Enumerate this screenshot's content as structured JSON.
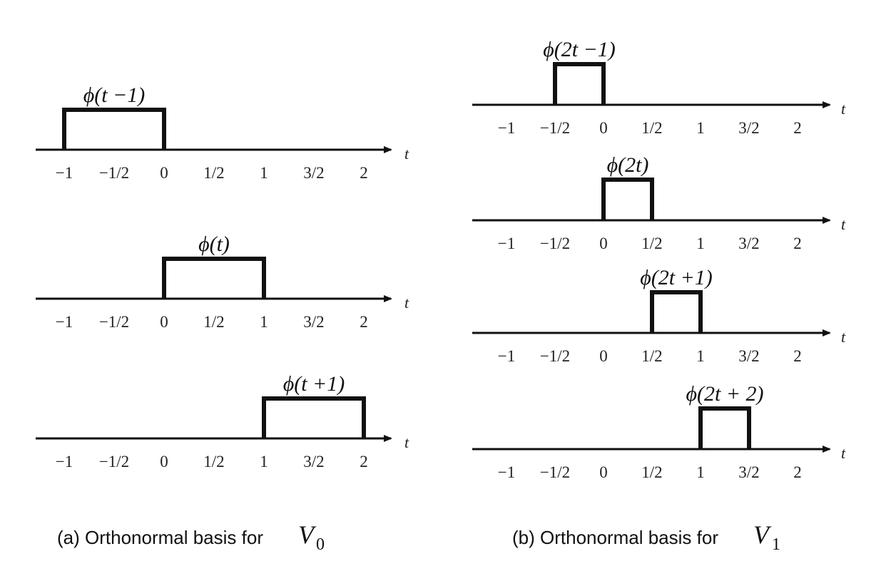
{
  "axis_variable": "t",
  "panels": [
    {
      "caption": {
        "text": "(a) Orthonormal basis for",
        "space": "V",
        "subscript": "0"
      },
      "plots": [
        {
          "label": "ϕ(t −1)",
          "support": [
            -1,
            0
          ]
        },
        {
          "label": "ϕ(t)",
          "support": [
            0,
            1
          ]
        },
        {
          "label": "ϕ(t +1)",
          "support": [
            1,
            2
          ]
        }
      ],
      "ticks": [
        "−1",
        "−1/2",
        "0",
        "1/2",
        "1",
        "3/2",
        "2"
      ],
      "tick_values": [
        -1,
        -0.5,
        0,
        0.5,
        1,
        1.5,
        2
      ]
    },
    {
      "caption": {
        "text": "(b) Orthonormal basis for",
        "space": "V",
        "subscript": "1"
      },
      "plots": [
        {
          "label": "ϕ(2t −1)",
          "support": [
            -0.5,
            0
          ]
        },
        {
          "label": "ϕ(2t)",
          "support": [
            0,
            0.5
          ]
        },
        {
          "label": "ϕ(2t +1)",
          "support": [
            0.5,
            1
          ]
        },
        {
          "label": "ϕ(2t + 2)",
          "support": [
            1,
            1.5
          ]
        }
      ],
      "ticks": [
        "−1",
        "−1/2",
        "0",
        "1/2",
        "1",
        "3/2",
        "2"
      ],
      "tick_values": [
        -1,
        -0.5,
        0,
        0.5,
        1,
        1.5,
        2
      ]
    }
  ]
}
